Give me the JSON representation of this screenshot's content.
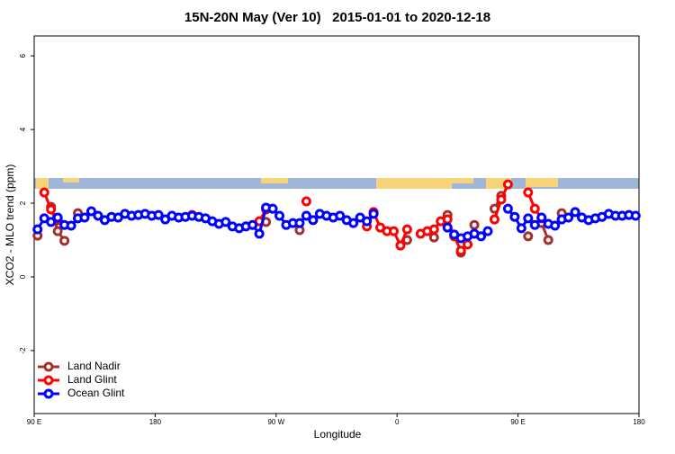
{
  "chart_data": {
    "type": "line",
    "title": "15N-20N May (Ver 10)   2015-01-01 to 2020-12-18",
    "xlabel": "Longitude",
    "ylabel": "XCO2 - MLO trend (ppm)",
    "xlim": [
      90,
      540
    ],
    "ylim": [
      -3.71,
      6.54
    ],
    "xticks": [
      {
        "value": 90,
        "label": "90 E"
      },
      180,
      {
        "value": 270,
        "label": "90 W"
      },
      {
        "value": 360,
        "label": "0"
      },
      {
        "value": 450,
        "label": "90 E"
      },
      {
        "value": 540,
        "label": "180"
      }
    ],
    "yticks": [
      -2,
      0,
      2,
      4,
      6
    ],
    "legend": "bottom-left",
    "x": [
      92.5,
      97.5,
      102.5,
      107.5,
      112.5,
      117.5,
      122.5,
      127.5,
      132.5,
      137.5,
      142.5,
      147.5,
      152.5,
      157.5,
      162.5,
      167.5,
      172.5,
      177.5,
      182.5,
      187.5,
      192.5,
      197.5,
      202.5,
      207.5,
      212.5,
      217.5,
      222.5,
      227.5,
      232.5,
      237.5,
      242.5,
      247.5,
      252.5,
      257.5,
      262.5,
      267.5,
      272.5,
      277.5,
      282.5,
      287.5,
      292.5,
      297.5,
      302.5,
      307.5,
      312.5,
      317.5,
      322.5,
      327.5,
      332.5,
      337.5,
      342.5,
      347.5,
      352.5,
      357.5,
      362.5,
      367.5,
      372.5,
      377.5,
      382.5,
      387.5,
      392.5,
      397.5,
      402.5,
      407.5,
      412.5,
      417.5,
      422.5,
      427.5,
      432.5,
      437.5,
      442.5,
      447.5,
      452.5,
      457.5,
      462.5,
      467.5,
      472.5,
      477.5,
      482.5,
      487.5,
      492.5,
      497.5,
      502.5,
      507.5,
      512.5,
      517.5,
      522.5,
      527.5,
      532.5,
      537.5
    ],
    "series": [
      {
        "name": "Land Nadir",
        "color": "#a3302c",
        "values": [
          1.12,
          null,
          1.9,
          1.24,
          0.98,
          null,
          1.73,
          null,
          null,
          null,
          null,
          null,
          null,
          null,
          null,
          null,
          null,
          null,
          null,
          null,
          null,
          null,
          null,
          null,
          null,
          null,
          null,
          null,
          null,
          null,
          null,
          null,
          null,
          null,
          1.49,
          null,
          null,
          null,
          null,
          1.27,
          null,
          null,
          null,
          null,
          null,
          null,
          null,
          null,
          null,
          null,
          null,
          null,
          null,
          null,
          null,
          1.0,
          null,
          null,
          null,
          1.07,
          null,
          1.68,
          null,
          0.66,
          null,
          1.41,
          null,
          null,
          1.85,
          2.2,
          null,
          null,
          null,
          1.1,
          null,
          1.46,
          1.0,
          null,
          1.73,
          null,
          null,
          null,
          null,
          null,
          null,
          null,
          null,
          null,
          null,
          null
        ]
      },
      {
        "name": "Land Glint",
        "color": "#ff0000",
        "values": [
          null,
          2.29,
          1.83,
          1.54,
          null,
          null,
          null,
          null,
          null,
          null,
          null,
          null,
          null,
          null,
          null,
          null,
          null,
          null,
          null,
          null,
          null,
          null,
          null,
          1.68,
          null,
          null,
          null,
          null,
          null,
          null,
          null,
          null,
          null,
          1.51,
          1.83,
          null,
          null,
          null,
          null,
          null,
          2.05,
          null,
          null,
          null,
          null,
          null,
          null,
          null,
          null,
          1.37,
          1.76,
          1.34,
          1.24,
          1.24,
          0.85,
          1.29,
          null,
          1.17,
          1.24,
          1.29,
          1.51,
          1.56,
          1.1,
          0.71,
          0.88,
          null,
          null,
          null,
          1.56,
          2.1,
          2.51,
          null,
          null,
          2.29,
          1.85,
          1.59,
          null,
          null,
          null,
          null,
          null,
          null,
          null,
          null,
          null,
          null,
          null,
          null,
          null,
          null
        ]
      },
      {
        "name": "Ocean Glint",
        "color": "#0000ff",
        "values": [
          1.29,
          1.59,
          1.49,
          1.61,
          1.41,
          1.39,
          1.59,
          1.61,
          1.78,
          1.66,
          1.54,
          1.63,
          1.61,
          1.71,
          1.66,
          1.68,
          1.71,
          1.66,
          1.68,
          1.56,
          1.66,
          1.61,
          1.63,
          1.66,
          1.63,
          1.59,
          1.51,
          1.44,
          1.49,
          1.37,
          1.32,
          1.37,
          1.41,
          1.17,
          1.88,
          1.85,
          1.66,
          1.41,
          1.46,
          1.46,
          1.66,
          1.54,
          1.71,
          1.66,
          1.61,
          1.66,
          1.54,
          1.46,
          1.61,
          1.51,
          1.71,
          null,
          null,
          null,
          null,
          null,
          null,
          null,
          null,
          null,
          null,
          1.34,
          1.15,
          1.05,
          1.1,
          1.17,
          1.1,
          1.24,
          null,
          null,
          1.85,
          1.63,
          1.32,
          1.59,
          1.41,
          1.61,
          1.44,
          1.39,
          1.56,
          1.61,
          1.76,
          1.61,
          1.54,
          1.59,
          1.63,
          1.71,
          1.66,
          1.66,
          1.68,
          1.66
        ]
      }
    ]
  }
}
